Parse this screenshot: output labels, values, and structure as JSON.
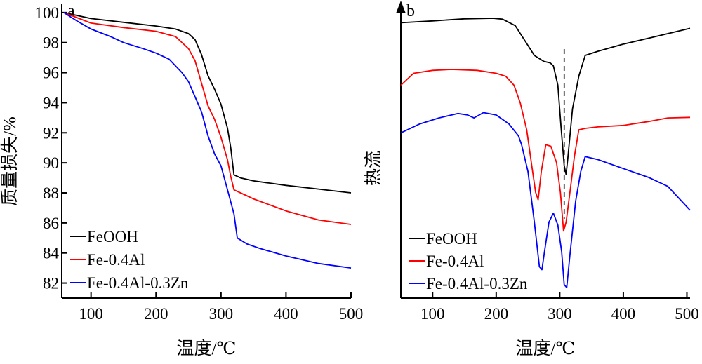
{
  "chart_data": [
    {
      "panel": "a",
      "type": "line",
      "xlabel": "温度/℃",
      "ylabel": "质量损失/%",
      "xlim": [
        55,
        500
      ],
      "ylim": [
        81,
        100.6
      ],
      "xticks": [
        100,
        200,
        300,
        400,
        500
      ],
      "xtick_labels": [
        "100",
        "200",
        "300",
        "400",
        "500"
      ],
      "yticks": [
        82,
        84,
        86,
        88,
        90,
        92,
        94,
        96,
        98,
        100
      ],
      "ytick_labels": [
        "82",
        "84",
        "86",
        "88",
        "90",
        "92",
        "94",
        "96",
        "98",
        "100"
      ],
      "legend": "bottom-left",
      "grid": false,
      "series": [
        {
          "name": "FeOOH",
          "color": "#000000",
          "points": [
            [
              58,
              100
            ],
            [
              100,
              99.6
            ],
            [
              150,
              99.35
            ],
            [
              200,
              99.1
            ],
            [
              230,
              98.9
            ],
            [
              250,
              98.6
            ],
            [
              260,
              98.2
            ],
            [
              270,
              97.2
            ],
            [
              280,
              95.8
            ],
            [
              290,
              94.9
            ],
            [
              300,
              93.9
            ],
            [
              310,
              92.3
            ],
            [
              315,
              91.0
            ],
            [
              320,
              89.2
            ],
            [
              330,
              89.0
            ],
            [
              350,
              88.8
            ],
            [
              400,
              88.5
            ],
            [
              450,
              88.25
            ],
            [
              500,
              88.0
            ]
          ]
        },
        {
          "name": "Fe-0.4Al",
          "color": "#ff0000",
          "points": [
            [
              58,
              100
            ],
            [
              100,
              99.3
            ],
            [
              150,
              99.0
            ],
            [
              200,
              98.75
            ],
            [
              230,
              98.4
            ],
            [
              250,
              97.6
            ],
            [
              260,
              96.8
            ],
            [
              270,
              95.3
            ],
            [
              280,
              93.8
            ],
            [
              290,
              92.9
            ],
            [
              300,
              91.7
            ],
            [
              310,
              90.2
            ],
            [
              315,
              89.1
            ],
            [
              320,
              88.2
            ],
            [
              330,
              88.0
            ],
            [
              350,
              87.6
            ],
            [
              400,
              86.8
            ],
            [
              450,
              86.2
            ],
            [
              500,
              85.9
            ]
          ]
        },
        {
          "name": "Fe-0.4Al-0.3Zn",
          "color": "#0000ff",
          "points": [
            [
              58,
              100
            ],
            [
              80,
              99.4
            ],
            [
              100,
              98.9
            ],
            [
              130,
              98.4
            ],
            [
              150,
              98.0
            ],
            [
              180,
              97.6
            ],
            [
              200,
              97.3
            ],
            [
              220,
              96.9
            ],
            [
              240,
              96.0
            ],
            [
              250,
              95.4
            ],
            [
              260,
              94.4
            ],
            [
              270,
              93.4
            ],
            [
              280,
              91.8
            ],
            [
              290,
              90.6
            ],
            [
              300,
              89.8
            ],
            [
              310,
              88.2
            ],
            [
              320,
              86.6
            ],
            [
              325,
              85.0
            ],
            [
              340,
              84.6
            ],
            [
              360,
              84.3
            ],
            [
              400,
              83.8
            ],
            [
              450,
              83.3
            ],
            [
              500,
              83.0
            ]
          ]
        }
      ]
    },
    {
      "panel": "b",
      "type": "line",
      "xlabel": "温度/℃",
      "ylabel": "热流",
      "xlim": [
        50,
        505
      ],
      "y_scale": "arbitrary",
      "xticks": [
        100,
        200,
        300,
        400,
        500
      ],
      "xtick_labels": [
        "100",
        "200",
        "300",
        "400",
        "500"
      ],
      "reference_line_x": 307,
      "legend": "bottom-left",
      "grid": false,
      "series": [
        {
          "name": "FeOOH",
          "color": "#000000",
          "points": [
            [
              50,
              5.0
            ],
            [
              100,
              5.6
            ],
            [
              150,
              6.3
            ],
            [
              195,
              6.5
            ],
            [
              210,
              6.2
            ],
            [
              230,
              4.0
            ],
            [
              245,
              -1.0
            ],
            [
              260,
              -6.0
            ],
            [
              275,
              -8.0
            ],
            [
              285,
              -8.5
            ],
            [
              290,
              -9.5
            ],
            [
              297,
              -16
            ],
            [
              302,
              -30
            ],
            [
              307,
              -43
            ],
            [
              310,
              -46
            ],
            [
              313,
              -40
            ],
            [
              320,
              -24
            ],
            [
              330,
              -13
            ],
            [
              340,
              -6
            ],
            [
              360,
              -4.6
            ],
            [
              400,
              -2.2
            ],
            [
              450,
              0.3
            ],
            [
              505,
              3.1
            ]
          ]
        },
        {
          "name": "Fe-0.4Al",
          "color": "#ff0000",
          "points": [
            [
              50,
              -16.0
            ],
            [
              70,
              -12.0
            ],
            [
              100,
              -11.0
            ],
            [
              130,
              -10.7
            ],
            [
              170,
              -11.0
            ],
            [
              200,
              -12.0
            ],
            [
              215,
              -13.0
            ],
            [
              228,
              -16.0
            ],
            [
              238,
              -22.0
            ],
            [
              248,
              -31.0
            ],
            [
              256,
              -43.0
            ],
            [
              262,
              -52.0
            ],
            [
              266,
              -54.5
            ],
            [
              271,
              -45.0
            ],
            [
              278,
              -36.0
            ],
            [
              286,
              -36.5
            ],
            [
              295,
              -42.0
            ],
            [
              301,
              -52.0
            ],
            [
              306,
              -65.0
            ],
            [
              310,
              -62.0
            ],
            [
              316,
              -52.0
            ],
            [
              323,
              -40.0
            ],
            [
              330,
              -31.0
            ],
            [
              340,
              -30.5
            ],
            [
              360,
              -30.0
            ],
            [
              400,
              -29.5
            ],
            [
              440,
              -28.2
            ],
            [
              470,
              -27.0
            ],
            [
              505,
              -26.8
            ]
          ]
        },
        {
          "name": "Fe-0.4Al-0.3Zn",
          "color": "#0000ff",
          "points": [
            [
              50,
              -32.0
            ],
            [
              80,
              -29.0
            ],
            [
              110,
              -27.0
            ],
            [
              140,
              -25.5
            ],
            [
              155,
              -26.0
            ],
            [
              165,
              -27.0
            ],
            [
              180,
              -25.2
            ],
            [
              200,
              -26.0
            ],
            [
              220,
              -29.0
            ],
            [
              235,
              -33.0
            ],
            [
              240,
              -36.0
            ],
            [
              250,
              -45.0
            ],
            [
              260,
              -62.0
            ],
            [
              268,
              -77.0
            ],
            [
              272,
              -78.0
            ],
            [
              276,
              -72.0
            ],
            [
              283,
              -62.0
            ],
            [
              290,
              -59.0
            ],
            [
              297,
              -63.0
            ],
            [
              303,
              -72.0
            ],
            [
              307,
              -83.0
            ],
            [
              311,
              -84.0
            ],
            [
              316,
              -73.0
            ],
            [
              325,
              -55.0
            ],
            [
              333,
              -45.0
            ],
            [
              340,
              -40.0
            ],
            [
              360,
              -41.0
            ],
            [
              400,
              -44.0
            ],
            [
              440,
              -47.0
            ],
            [
              470,
              -50.0
            ],
            [
              505,
              -58.0
            ]
          ]
        }
      ]
    }
  ]
}
